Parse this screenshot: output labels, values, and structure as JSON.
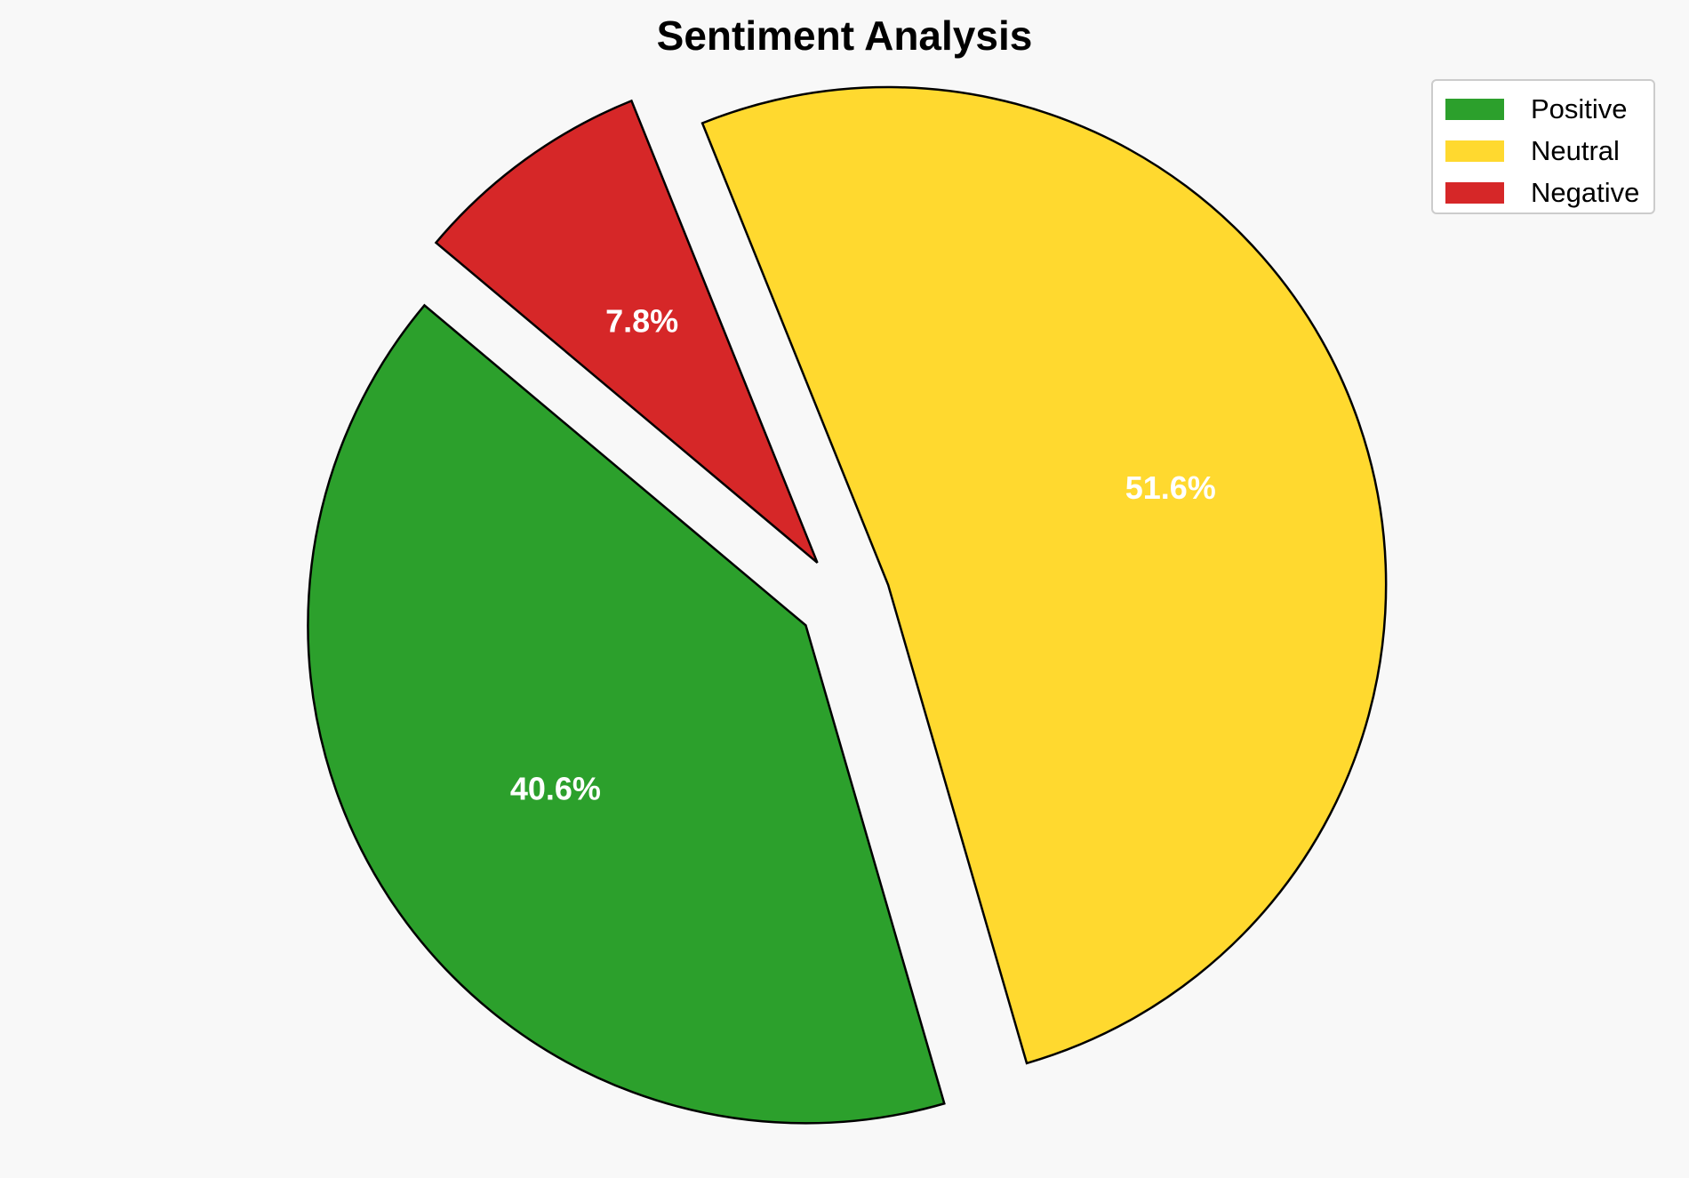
{
  "chart_data": {
    "type": "pie",
    "title": "Sentiment Analysis",
    "categories": [
      "Positive",
      "Neutral",
      "Negative"
    ],
    "values": [
      40.6,
      51.6,
      7.8
    ],
    "value_labels": [
      "40.6%",
      "51.6%",
      "7.8%"
    ],
    "colors": [
      "#2ca02c",
      "#ffd92f",
      "#d62728"
    ],
    "exploded": true,
    "start_angle_deg": 140,
    "direction": "counterclockwise",
    "edge_color": "#000000",
    "label_color": "#ffffff",
    "legend_position": "top-right"
  },
  "legend": {
    "items": [
      {
        "label": "Positive",
        "color": "#2ca02c"
      },
      {
        "label": "Neutral",
        "color": "#ffd92f"
      },
      {
        "label": "Negative",
        "color": "#d62728"
      }
    ]
  }
}
